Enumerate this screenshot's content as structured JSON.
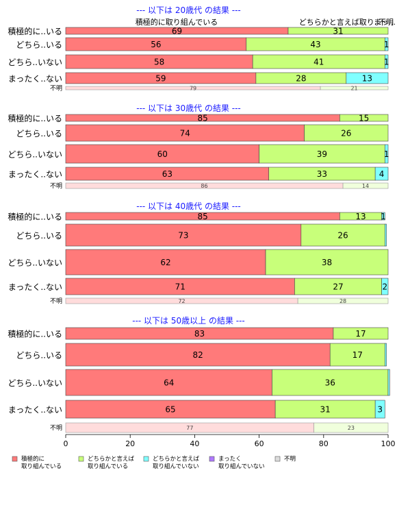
{
  "colors": {
    "series": [
      "#ff7a7a",
      "#c8ff7a",
      "#80ffff",
      "#b07aff",
      "#dcdcdc"
    ],
    "unknown": [
      "#ffdcdc",
      "#f0ffdc",
      "#dcffff",
      "#ecdcff",
      "#f2f2f2"
    ],
    "title": "#1a1aff",
    "border": "#444444"
  },
  "top_annotations": [
    "積極的に取り組んでいる",
    "どちらかと言えば取り...",
    "まっ...",
    "不明"
  ],
  "chart_data": {
    "type": "bar",
    "orientation": "horizontal-stacked-percent",
    "xlim": [
      0,
      100
    ],
    "x_ticks": [
      "0",
      "20",
      "40",
      "60",
      "80",
      "100"
    ],
    "series_names": [
      "積極的に\n取り組んでいる",
      "どちらかと言えば\n取り組んでいる",
      "どちらかと言えば\n取り組んでいない",
      "まったく\n取り組んでいない",
      "不明"
    ],
    "legend_position": "bottom",
    "panels": [
      {
        "title": "--- 以下は 20歳代 の結果 ---",
        "rows": [
          {
            "label": "積極的に..いる",
            "values": [
              69,
              31,
              0,
              0,
              0
            ]
          },
          {
            "label": "どちら..いる",
            "values": [
              56,
              43,
              1,
              0,
              0
            ]
          },
          {
            "label": "どちら..いない",
            "values": [
              58,
              41,
              1,
              0,
              0
            ]
          },
          {
            "label": "まったく..ない",
            "values": [
              59,
              28,
              13,
              0,
              0
            ]
          },
          {
            "label": "不明",
            "values": [
              79,
              21,
              0,
              0,
              0
            ],
            "unknown": true
          }
        ]
      },
      {
        "title": "--- 以下は 30歳代 の結果 ---",
        "rows": [
          {
            "label": "積極的に..いる",
            "values": [
              85,
              15,
              0,
              0,
              0
            ]
          },
          {
            "label": "どちら..いる",
            "values": [
              74,
              26,
              0,
              0,
              0
            ]
          },
          {
            "label": "どちら..いない",
            "values": [
              60,
              39,
              1,
              0,
              0
            ]
          },
          {
            "label": "まったく..ない",
            "values": [
              63,
              33,
              4,
              0,
              0
            ]
          },
          {
            "label": "不明",
            "values": [
              86,
              14,
              0,
              0,
              0
            ],
            "unknown": true
          }
        ]
      },
      {
        "title": "--- 以下は 40歳代 の結果 ---",
        "rows": [
          {
            "label": "積極的に..いる",
            "values": [
              85,
              13,
              1,
              0,
              0
            ]
          },
          {
            "label": "どちら..いる",
            "values": [
              73,
              26,
              0.5,
              0,
              0
            ]
          },
          {
            "label": "どちら..いない",
            "values": [
              62,
              38,
              0,
              0,
              0
            ]
          },
          {
            "label": "まったく..ない",
            "values": [
              71,
              27,
              2,
              0,
              0
            ]
          },
          {
            "label": "不明",
            "values": [
              72,
              28,
              0,
              0,
              0
            ],
            "unknown": true
          }
        ]
      },
      {
        "title": "--- 以下は 50歳以上 の結果 ---",
        "rows": [
          {
            "label": "積極的に..いる",
            "values": [
              83,
              17,
              0,
              0,
              0
            ]
          },
          {
            "label": "どちら..いる",
            "values": [
              82,
              17,
              0.5,
              0,
              0
            ]
          },
          {
            "label": "どちら..いない",
            "values": [
              64,
              36,
              0.5,
              0,
              0
            ]
          },
          {
            "label": "まったく..ない",
            "values": [
              65,
              31,
              3,
              0,
              0
            ]
          },
          {
            "label": "不明",
            "values": [
              77,
              23,
              0,
              0,
              0
            ],
            "unknown": true
          }
        ]
      }
    ]
  }
}
